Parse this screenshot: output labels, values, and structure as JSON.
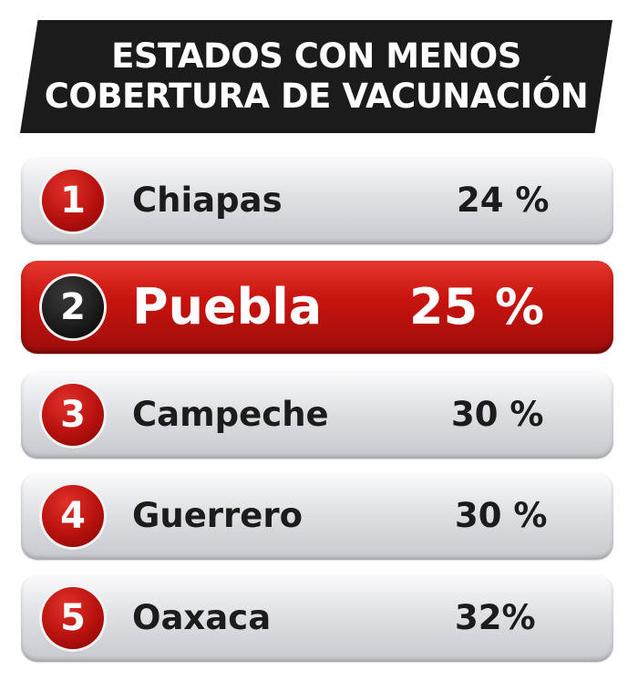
{
  "header": {
    "line1": "ESTADOS CON MENOS",
    "line2": "COBERTURA DE VACUNACIÓN"
  },
  "colors": {
    "accent_red": "#c9140f",
    "banner_dark": "#1b1b1b",
    "row_gray": "#dfe1e5"
  },
  "ranking": [
    {
      "rank": "1",
      "state": "Chiapas",
      "percent": "24 %"
    },
    {
      "rank": "2",
      "state": "Puebla",
      "percent": "25 %"
    },
    {
      "rank": "3",
      "state": "Campeche",
      "percent": "30 %"
    },
    {
      "rank": "4",
      "state": "Guerrero",
      "percent": "30 %"
    },
    {
      "rank": "5",
      "state": "Oaxaca",
      "percent": "32%"
    }
  ]
}
